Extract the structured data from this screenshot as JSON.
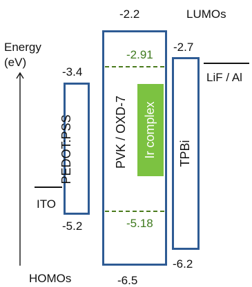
{
  "header": {
    "lumos": "LUMOs",
    "homos": "HOMOs"
  },
  "axis": {
    "label_line1": "Energy",
    "label_line2": "(eV)"
  },
  "layers": {
    "ito": {
      "name": "ITO"
    },
    "pedot": {
      "name": "PEDOT:PSS",
      "lumo": "-3.4",
      "homo": "-5.2"
    },
    "pvk": {
      "name": "PVK / OXD-7",
      "lumo": "-2.2",
      "homo": "-6.5"
    },
    "ir": {
      "name": "Ir complex",
      "lumo": "-2.91",
      "homo": "-5.18"
    },
    "tpbi": {
      "name": "TPBi",
      "lumo": "-2.7",
      "homo": "-6.2"
    },
    "cathode": {
      "name": "LiF / Al"
    }
  },
  "colors": {
    "box_border": "#2e5b94",
    "ir_fill": "#7cc241",
    "ir_level_text": "#3f7a1e"
  }
}
